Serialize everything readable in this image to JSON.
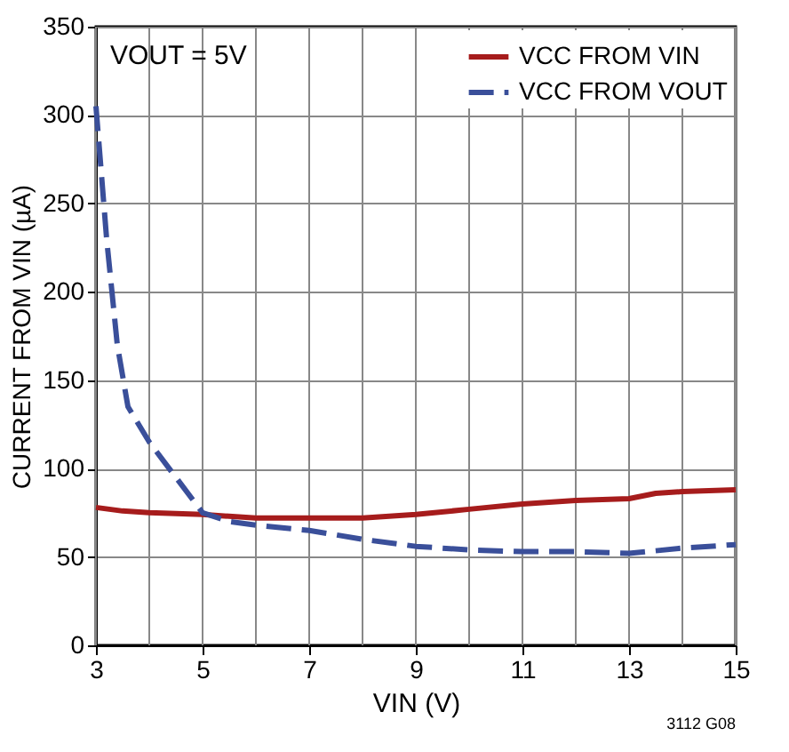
{
  "chart_data": {
    "type": "line",
    "xlabel": "VIN (V)",
    "ylabel": "CURRENT FROM VIN (µA)",
    "x": [
      3,
      3.5,
      4,
      5,
      6,
      7,
      8,
      9,
      10,
      11,
      12,
      13,
      13.5,
      14,
      15
    ],
    "series": [
      {
        "name": "VCC FROM VIN",
        "color": "#a61c1c",
        "line_style": "solid",
        "values": [
          78,
          76,
          75,
          74,
          72,
          72,
          72,
          74,
          77,
          80,
          82,
          83,
          86,
          87,
          88
        ]
      },
      {
        "name": "VCC FROM VOUT",
        "color": "#3a4f9a",
        "line_style": "dashed",
        "x": [
          3,
          3.2,
          3.4,
          3.6,
          4,
          4.5,
          5,
          5.5,
          6,
          7,
          8,
          9,
          10,
          11,
          12,
          13,
          14,
          15
        ],
        "values": [
          305,
          230,
          170,
          135,
          115,
          95,
          75,
          70,
          68,
          65,
          60,
          56,
          54,
          53,
          53,
          52,
          55,
          57
        ]
      }
    ],
    "xlim": [
      3,
      15
    ],
    "xticks": [
      3,
      {
        "value": 4,
        "label": null
      },
      5,
      {
        "value": 6,
        "label": null
      },
      7,
      {
        "value": 8,
        "label": null
      },
      9,
      {
        "value": 10,
        "label": null
      },
      11,
      {
        "value": 12,
        "label": null
      },
      13,
      {
        "value": 14,
        "label": null
      },
      15
    ],
    "ylim": [
      0,
      350
    ],
    "yticks": [
      0,
      50,
      100,
      150,
      200,
      250,
      300,
      350
    ],
    "grid": true,
    "legend": "top right",
    "marker": "none",
    "annotations": [
      "VOUT = 5V",
      "3112 G08"
    ]
  }
}
